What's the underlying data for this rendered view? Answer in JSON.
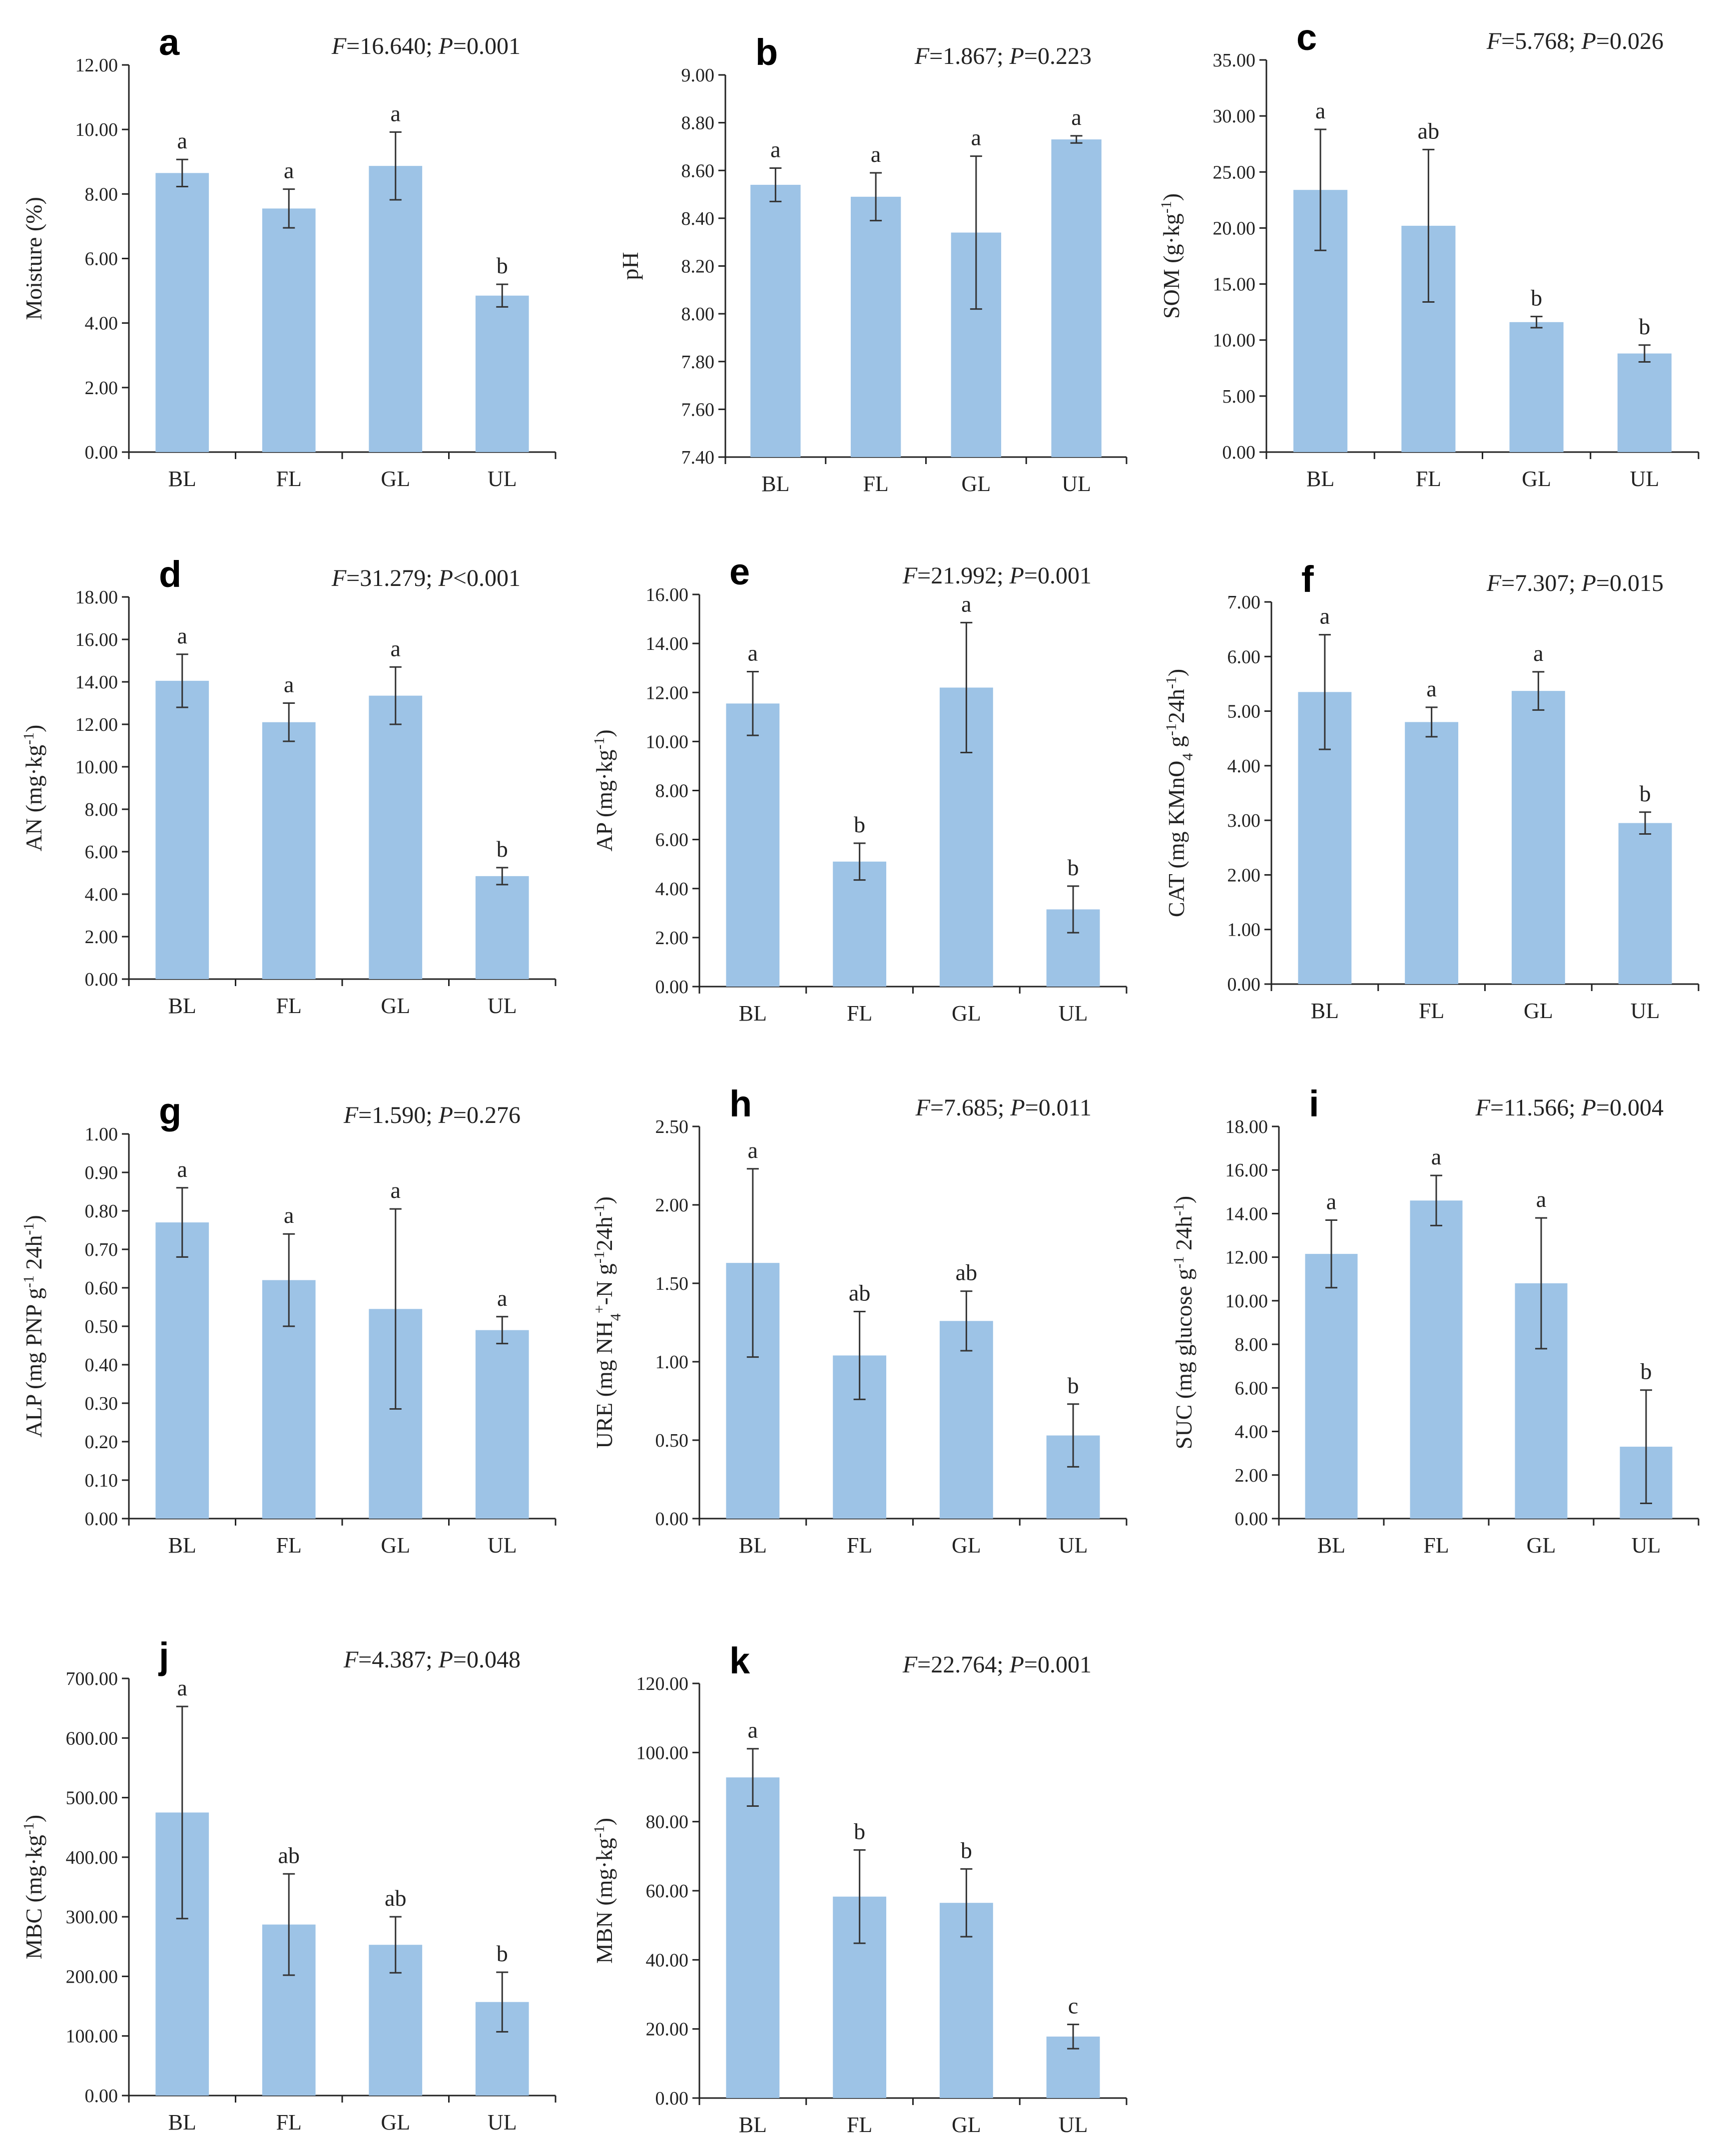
{
  "figure": {
    "bar_color": "#9dc3e6",
    "axis_color": "#222222",
    "error_bar_color": "#333333"
  },
  "chart_data": [
    {
      "id": "a",
      "panel_letter": "a",
      "type": "bar",
      "stat_F": "16.640",
      "stat_P_op": "=",
      "stat_P": "0.001",
      "ylabel": "Moisture (%)",
      "ylabel_parts": [
        {
          "t": "Moisture (%)"
        }
      ],
      "categories": [
        "BL",
        "FL",
        "GL",
        "UL"
      ],
      "values": [
        8.65,
        7.55,
        8.87,
        4.85
      ],
      "errors": [
        0.42,
        0.6,
        1.05,
        0.35
      ],
      "significance": [
        "a",
        "a",
        "a",
        "b"
      ],
      "ylim": [
        0,
        12
      ],
      "yticks": [
        "0.00",
        "2.00",
        "4.00",
        "6.00",
        "8.00",
        "10.00",
        "12.00"
      ]
    },
    {
      "id": "b",
      "panel_letter": "b",
      "type": "bar",
      "stat_F": "1.867",
      "stat_P_op": "=",
      "stat_P": "0.223",
      "ylabel": "pH",
      "ylabel_parts": [
        {
          "t": "pH"
        }
      ],
      "categories": [
        "BL",
        "FL",
        "GL",
        "UL"
      ],
      "values": [
        8.54,
        8.49,
        8.34,
        8.73
      ],
      "errors": [
        0.07,
        0.1,
        0.32,
        0.015
      ],
      "significance": [
        "a",
        "a",
        "a",
        "a"
      ],
      "ylim": [
        7.4,
        9.0
      ],
      "yticks": [
        "7.40",
        "7.60",
        "7.80",
        "8.00",
        "8.20",
        "8.40",
        "8.60",
        "8.80",
        "9.00"
      ]
    },
    {
      "id": "c",
      "panel_letter": "c",
      "type": "bar",
      "stat_F": "5.768",
      "stat_P_op": "=",
      "stat_P": "0.026",
      "ylabel": "SOM (g·kg-1)",
      "ylabel_parts": [
        {
          "t": "SOM (g·kg"
        },
        {
          "t": "-1",
          "sup": true
        },
        {
          "t": ")"
        }
      ],
      "categories": [
        "BL",
        "FL",
        "GL",
        "UL"
      ],
      "values": [
        23.4,
        20.2,
        11.6,
        8.8
      ],
      "errors": [
        5.4,
        6.8,
        0.5,
        0.75
      ],
      "significance": [
        "a",
        "ab",
        "b",
        "b"
      ],
      "ylim": [
        0,
        35
      ],
      "yticks": [
        "0.00",
        "5.00",
        "10.00",
        "15.00",
        "20.00",
        "25.00",
        "30.00",
        "35.00"
      ]
    },
    {
      "id": "d",
      "panel_letter": "d",
      "type": "bar",
      "stat_F": "31.279",
      "stat_P_op": "<",
      "stat_P": "0.001",
      "ylabel": "AN (mg·kg-1)",
      "ylabel_parts": [
        {
          "t": "AN (mg·kg"
        },
        {
          "t": "-1",
          "sup": true
        },
        {
          "t": ")"
        }
      ],
      "categories": [
        "BL",
        "FL",
        "GL",
        "UL"
      ],
      "values": [
        14.05,
        12.1,
        13.35,
        4.85
      ],
      "errors": [
        1.25,
        0.9,
        1.35,
        0.4
      ],
      "significance": [
        "a",
        "a",
        "a",
        "b"
      ],
      "ylim": [
        0,
        18
      ],
      "yticks": [
        "0.00",
        "2.00",
        "4.00",
        "6.00",
        "8.00",
        "10.00",
        "12.00",
        "14.00",
        "16.00",
        "18.00"
      ]
    },
    {
      "id": "e",
      "panel_letter": "e",
      "type": "bar",
      "stat_F": "21.992",
      "stat_P_op": "=",
      "stat_P": "0.001",
      "ylabel": "AP (mg·kg-1)",
      "ylabel_parts": [
        {
          "t": "AP (mg·kg"
        },
        {
          "t": "-1",
          "sup": true
        },
        {
          "t": ")"
        }
      ],
      "categories": [
        "BL",
        "FL",
        "GL",
        "UL"
      ],
      "values": [
        11.55,
        5.1,
        12.2,
        3.15
      ],
      "errors": [
        1.3,
        0.75,
        2.65,
        0.95
      ],
      "significance": [
        "a",
        "b",
        "a",
        "b"
      ],
      "ylim": [
        0,
        16
      ],
      "yticks": [
        "0.00",
        "2.00",
        "4.00",
        "6.00",
        "8.00",
        "10.00",
        "12.00",
        "14.00",
        "16.00"
      ]
    },
    {
      "id": "f",
      "panel_letter": "f",
      "type": "bar",
      "stat_F": "7.307",
      "stat_P_op": "=",
      "stat_P": "0.015",
      "ylabel": "CAT (mg KMnO4 g-1 24h-1)",
      "ylabel_parts": [
        {
          "t": "CAT (mg KMnO"
        },
        {
          "t": "4",
          "sub": true
        },
        {
          "t": " g"
        },
        {
          "t": "-1",
          "sup": true
        },
        {
          "t": "24h"
        },
        {
          "t": "-1",
          "sup": true
        },
        {
          "t": ")"
        }
      ],
      "categories": [
        "BL",
        "FL",
        "GL",
        "UL"
      ],
      "values": [
        5.35,
        4.8,
        5.37,
        2.95
      ],
      "errors": [
        1.05,
        0.27,
        0.35,
        0.2
      ],
      "significance": [
        "a",
        "a",
        "a",
        "b"
      ],
      "ylim": [
        0,
        7
      ],
      "yticks": [
        "0.00",
        "1.00",
        "2.00",
        "3.00",
        "4.00",
        "5.00",
        "6.00",
        "7.00"
      ]
    },
    {
      "id": "g",
      "panel_letter": "g",
      "type": "bar",
      "stat_F": "1.590",
      "stat_P_op": "=",
      "stat_P": "0.276",
      "ylabel": "ALP (mg PNP g-1 24h-1)",
      "ylabel_parts": [
        {
          "t": "ALP (mg PNP g"
        },
        {
          "t": "-1",
          "sup": true
        },
        {
          "t": " 24h"
        },
        {
          "t": "-1",
          "sup": true
        },
        {
          "t": ")"
        }
      ],
      "categories": [
        "BL",
        "FL",
        "GL",
        "UL"
      ],
      "values": [
        0.77,
        0.62,
        0.545,
        0.49
      ],
      "errors": [
        0.09,
        0.12,
        0.26,
        0.035
      ],
      "significance": [
        "a",
        "a",
        "a",
        "a"
      ],
      "ylim": [
        0,
        1.0
      ],
      "yticks": [
        "0.00",
        "0.10",
        "0.20",
        "0.30",
        "0.40",
        "0.50",
        "0.60",
        "0.70",
        "0.80",
        "0.90",
        "1.00"
      ]
    },
    {
      "id": "h",
      "panel_letter": "h",
      "type": "bar",
      "stat_F": "7.685",
      "stat_P_op": "=",
      "stat_P": "0.011",
      "ylabel": "URE (mg NH4+-N g-1 24h-1)",
      "ylabel_parts": [
        {
          "t": "URE (mg NH"
        },
        {
          "t": "4",
          "sub": true
        },
        {
          "t": "+",
          "sup": true
        },
        {
          "t": "-N g"
        },
        {
          "t": "-1",
          "sup": true
        },
        {
          "t": "24h"
        },
        {
          "t": "-1",
          "sup": true
        },
        {
          "t": ")"
        }
      ],
      "categories": [
        "BL",
        "FL",
        "GL",
        "UL"
      ],
      "values": [
        1.63,
        1.04,
        1.26,
        0.53
      ],
      "errors": [
        0.6,
        0.28,
        0.19,
        0.2
      ],
      "significance": [
        "a",
        "ab",
        "ab",
        "b"
      ],
      "ylim": [
        0,
        2.5
      ],
      "yticks": [
        "0.00",
        "0.50",
        "1.00",
        "1.50",
        "2.00",
        "2.50"
      ]
    },
    {
      "id": "i",
      "panel_letter": "i",
      "type": "bar",
      "stat_F": "11.566",
      "stat_P_op": "=",
      "stat_P": "0.004",
      "ylabel": "SUC (mg glucose g-1 24h-1)",
      "ylabel_parts": [
        {
          "t": "SUC (mg glucose g"
        },
        {
          "t": "-1",
          "sup": true
        },
        {
          "t": " 24h"
        },
        {
          "t": "-1",
          "sup": true
        },
        {
          "t": ")"
        }
      ],
      "categories": [
        "BL",
        "FL",
        "GL",
        "UL"
      ],
      "values": [
        12.15,
        14.6,
        10.8,
        3.3
      ],
      "errors": [
        1.55,
        1.15,
        3.0,
        2.6
      ],
      "significance": [
        "a",
        "a",
        "a",
        "b"
      ],
      "ylim": [
        0,
        18
      ],
      "yticks": [
        "0.00",
        "2.00",
        "4.00",
        "6.00",
        "8.00",
        "10.00",
        "12.00",
        "14.00",
        "16.00",
        "18.00"
      ]
    },
    {
      "id": "j",
      "panel_letter": "j",
      "type": "bar",
      "stat_F": "4.387",
      "stat_P_op": "=",
      "stat_P": "0.048",
      "ylabel": "MBC (mg·kg-1)",
      "ylabel_parts": [
        {
          "t": "MBC (mg·kg"
        },
        {
          "t": "-1",
          "sup": true
        },
        {
          "t": ")"
        }
      ],
      "categories": [
        "BL",
        "FL",
        "GL",
        "UL"
      ],
      "values": [
        475,
        287,
        253,
        157
      ],
      "errors": [
        178,
        85,
        47,
        50
      ],
      "significance": [
        "a",
        "ab",
        "ab",
        "b"
      ],
      "ylim": [
        0,
        700
      ],
      "yticks": [
        "0.00",
        "100.00",
        "200.00",
        "300.00",
        "400.00",
        "500.00",
        "600.00",
        "700.00"
      ]
    },
    {
      "id": "k",
      "panel_letter": "k",
      "type": "bar",
      "stat_F": "22.764",
      "stat_P_op": "=",
      "stat_P": "0.001",
      "ylabel": "MBN (mg·kg-1)",
      "ylabel_parts": [
        {
          "t": "MBN (mg·kg"
        },
        {
          "t": "-1",
          "sup": true
        },
        {
          "t": ")"
        }
      ],
      "categories": [
        "BL",
        "FL",
        "GL",
        "UL"
      ],
      "values": [
        92.8,
        58.3,
        56.5,
        17.8
      ],
      "errors": [
        8.3,
        13.5,
        9.8,
        3.5
      ],
      "significance": [
        "a",
        "b",
        "b",
        "c"
      ],
      "ylim": [
        0,
        120
      ],
      "yticks": [
        "0.00",
        "20.00",
        "40.00",
        "60.00",
        "80.00",
        "100.00",
        "120.00"
      ]
    }
  ]
}
